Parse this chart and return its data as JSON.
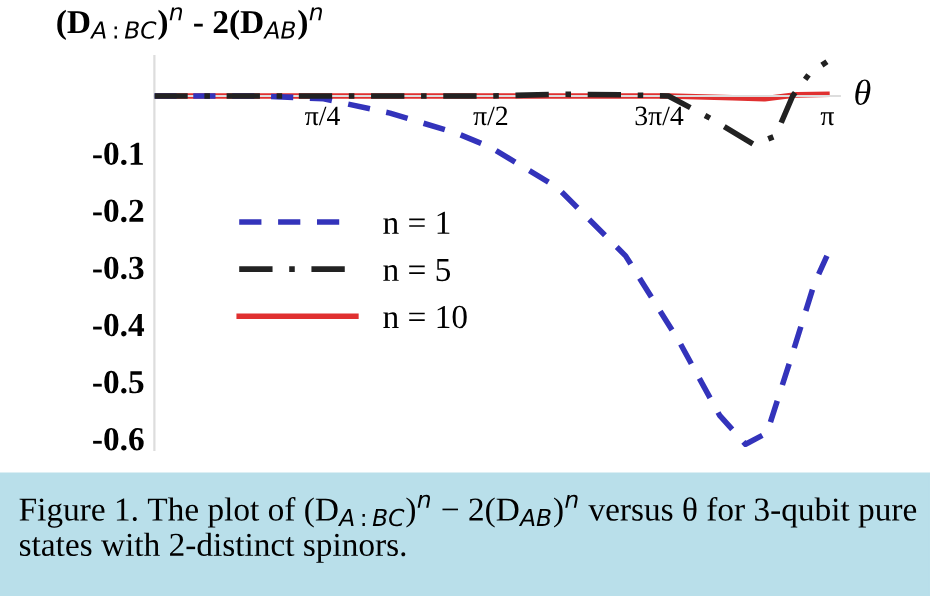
{
  "chart_data": {
    "type": "line",
    "ylabel": "(D$_{A:BC}$)$^{n}$ - 2(D$_{AB}$)$^{n}$",
    "xlabel": "θ",
    "annotations": [
      "Figure 1. The plot of (D$_{A:BC}$)$^{n}$ − 2(D$_{AB}$)$^{n}$ versus θ for 3-qubit pure states with 2-distinct spinors."
    ],
    "xlim": [
      0,
      3.2
    ],
    "ylim": [
      -0.62,
      0.07
    ],
    "xticks": [
      {
        "value": 0.785,
        "label": "π/4"
      },
      {
        "value": 1.571,
        "label": "π/2"
      },
      {
        "value": 2.356,
        "label": "3π/4"
      },
      {
        "value": 3.142,
        "label": "π"
      }
    ],
    "yticks": [
      -0.1,
      -0.2,
      -0.3,
      -0.4,
      -0.5,
      -0.6
    ],
    "grid": false,
    "legend": "left",
    "series": [
      {
        "name": "n = 1",
        "color": "#3333bb",
        "line_style": "dashed",
        "x": [
          0,
          0.47,
          0.69,
          0.79,
          1.1,
          1.41,
          1.57,
          1.88,
          2.2,
          2.45,
          2.64,
          2.76,
          2.86,
          2.98,
          3.08,
          3.14
        ],
        "values": [
          0,
          0,
          -0.003,
          -0.005,
          -0.03,
          -0.065,
          -0.09,
          -0.16,
          -0.28,
          -0.43,
          -0.56,
          -0.61,
          -0.59,
          -0.45,
          -0.33,
          -0.28
        ]
      },
      {
        "name": "n = 5",
        "color": "#222222",
        "line_style": "dashdot",
        "x": [
          0,
          1.57,
          1.9,
          2.2,
          2.4,
          2.6,
          2.8,
          2.9,
          2.98,
          3.06,
          3.14
        ],
        "values": [
          0,
          0,
          0.003,
          0.002,
          0,
          -0.04,
          -0.085,
          -0.07,
          0,
          0.04,
          0.06
        ]
      },
      {
        "name": "n = 10",
        "color": "#e03030",
        "line_style": "solid",
        "x": [
          0,
          2.4,
          2.7,
          2.85,
          3.0,
          3.14
        ],
        "values": [
          0,
          0,
          -0.003,
          -0.005,
          0.002,
          0.003
        ]
      }
    ]
  }
}
